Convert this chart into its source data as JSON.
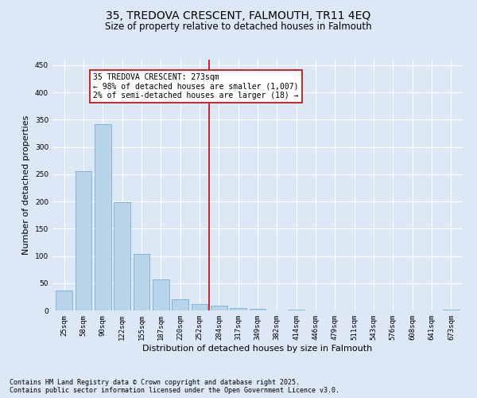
{
  "title": "35, TREDOVA CRESCENT, FALMOUTH, TR11 4EQ",
  "subtitle": "Size of property relative to detached houses in Falmouth",
  "xlabel": "Distribution of detached houses by size in Falmouth",
  "ylabel": "Number of detached properties",
  "categories": [
    "25sqm",
    "58sqm",
    "90sqm",
    "122sqm",
    "155sqm",
    "187sqm",
    "220sqm",
    "252sqm",
    "284sqm",
    "317sqm",
    "349sqm",
    "382sqm",
    "414sqm",
    "446sqm",
    "479sqm",
    "511sqm",
    "543sqm",
    "576sqm",
    "608sqm",
    "641sqm",
    "673sqm"
  ],
  "values": [
    37,
    256,
    342,
    198,
    104,
    57,
    20,
    11,
    9,
    4,
    3,
    0,
    1,
    0,
    0,
    0,
    0,
    0,
    0,
    0,
    1
  ],
  "bar_color": "#b8d4ea",
  "bar_edge_color": "#7aaed0",
  "vline_color": "#cc0000",
  "ylim": [
    0,
    460
  ],
  "yticks": [
    0,
    50,
    100,
    150,
    200,
    250,
    300,
    350,
    400,
    450
  ],
  "annotation_text": "35 TREDOVA CRESCENT: 273sqm\n← 98% of detached houses are smaller (1,007)\n2% of semi-detached houses are larger (18) →",
  "annotation_box_color": "#ffffff",
  "annotation_box_edge": "#cc0000",
  "footer_line1": "Contains HM Land Registry data © Crown copyright and database right 2025.",
  "footer_line2": "Contains public sector information licensed under the Open Government Licence v3.0.",
  "background_color": "#dce8f5",
  "plot_bg_color": "#dce8f5",
  "title_fontsize": 10,
  "subtitle_fontsize": 8.5,
  "tick_fontsize": 6.5,
  "ylabel_fontsize": 8,
  "xlabel_fontsize": 8,
  "footer_fontsize": 6,
  "annot_fontsize": 7
}
